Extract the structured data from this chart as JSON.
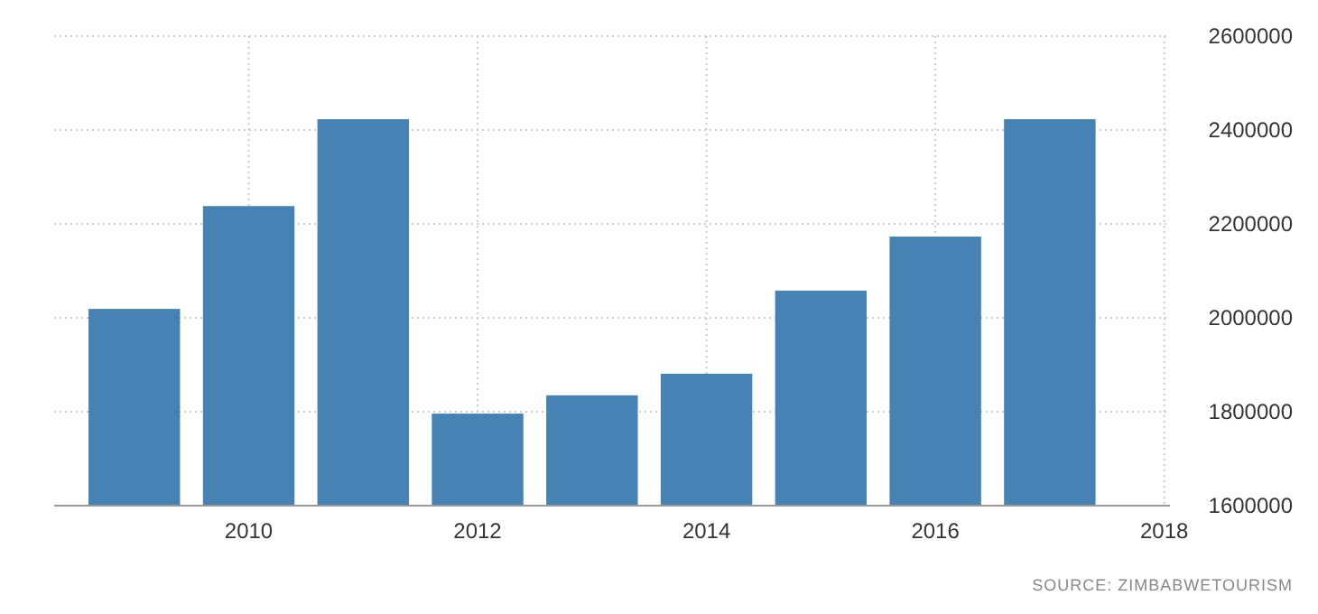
{
  "chart_data": {
    "type": "bar",
    "x": [
      2009,
      2010,
      2011,
      2012,
      2013,
      2014,
      2015,
      2016,
      2017
    ],
    "values": [
      2019000,
      2238000,
      2423000,
      1796000,
      1835000,
      1881000,
      2058000,
      2173000,
      2423000
    ],
    "color": "#4682b4",
    "xlim": [
      2008.3,
      2018.05
    ],
    "xticks": [
      2010,
      2012,
      2014,
      2016,
      2018
    ],
    "ylim": [
      1600000,
      2600000
    ],
    "yticks": [
      1600000,
      1800000,
      2000000,
      2200000,
      2400000,
      2600000
    ],
    "grid": true,
    "annotations": [
      "SOURCE: ZIMBABWETOURISM"
    ]
  }
}
